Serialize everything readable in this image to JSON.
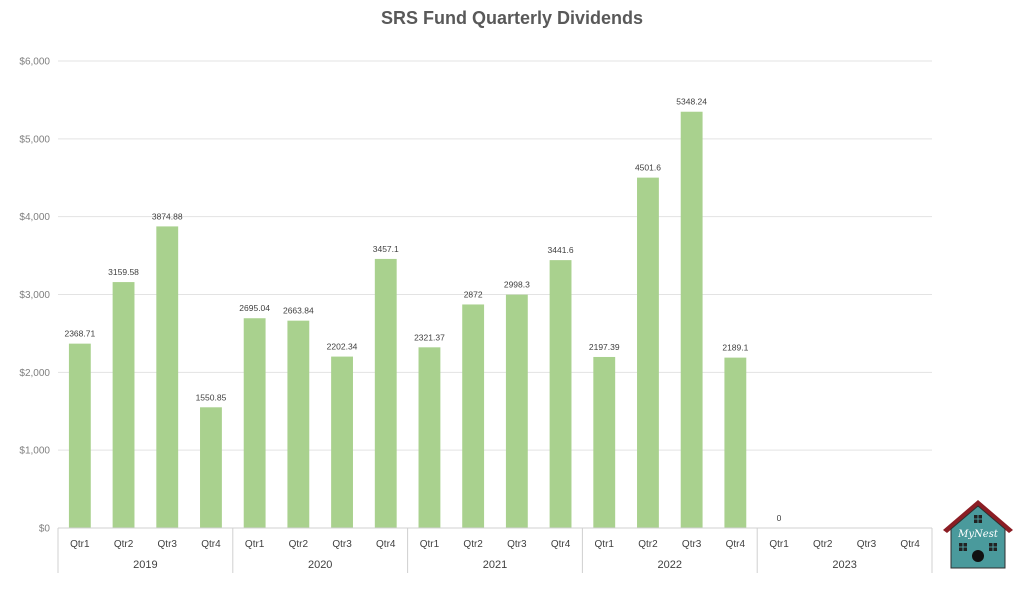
{
  "chart_data": {
    "type": "bar",
    "title": "SRS Fund Quarterly Dividends",
    "xlabel": "",
    "ylabel": "",
    "ylim": [
      0,
      6000
    ],
    "yticks": [
      0,
      1000,
      2000,
      3000,
      4000,
      5000,
      6000
    ],
    "ytick_labels": [
      "$0",
      "$1,000",
      "$2,000",
      "$3,000",
      "$4,000",
      "$5,000",
      "$6,000"
    ],
    "grid": true,
    "groups": [
      {
        "year": "2019",
        "quarters": [
          "Qtr1",
          "Qtr2",
          "Qtr3",
          "Qtr4"
        ],
        "values": [
          2368.71,
          3159.58,
          3874.88,
          1550.85
        ],
        "labels": [
          "2368.71",
          "3159.58",
          "3874.88",
          "1550.85"
        ]
      },
      {
        "year": "2020",
        "quarters": [
          "Qtr1",
          "Qtr2",
          "Qtr3",
          "Qtr4"
        ],
        "values": [
          2695.04,
          2663.84,
          2202.34,
          3457.1
        ],
        "labels": [
          "2695.04",
          "2663.84",
          "2202.34",
          "3457.1"
        ]
      },
      {
        "year": "2021",
        "quarters": [
          "Qtr1",
          "Qtr2",
          "Qtr3",
          "Qtr4"
        ],
        "values": [
          2321.37,
          2872,
          2998.3,
          3441.6
        ],
        "labels": [
          "2321.37",
          "2872",
          "2998.3",
          "3441.6"
        ]
      },
      {
        "year": "2022",
        "quarters": [
          "Qtr1",
          "Qtr2",
          "Qtr3",
          "Qtr4"
        ],
        "values": [
          2197.39,
          4501.6,
          5348.24,
          2189.1
        ],
        "labels": [
          "2197.39",
          "4501.6",
          "5348.24",
          "2189.1"
        ]
      },
      {
        "year": "2023",
        "quarters": [
          "Qtr1",
          "Qtr2",
          "Qtr3",
          "Qtr4"
        ],
        "values": [
          0,
          null,
          null,
          null
        ],
        "labels": [
          "0",
          null,
          null,
          null
        ]
      }
    ],
    "bar_color": "#a9d18e"
  },
  "logo": {
    "text": "MyNest",
    "roof_color": "#8b1d24",
    "body_color": "#4a9a9c"
  }
}
